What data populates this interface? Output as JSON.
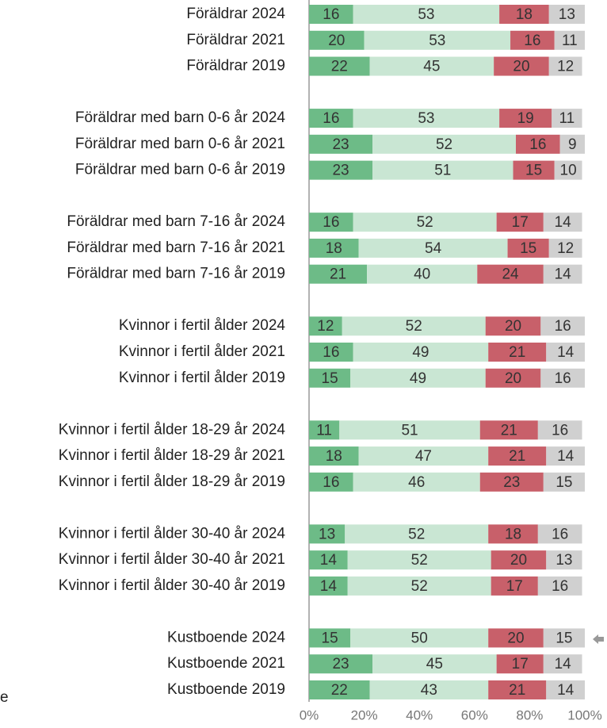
{
  "chart_data": {
    "type": "stacked-barh",
    "categories": [
      "Föräldrar 2024",
      "Föräldrar 2021",
      "Föräldrar 2019",
      null,
      "Föräldrar med barn 0-6 år 2024",
      "Föräldrar med barn 0-6 år 2021",
      "Föräldrar med barn 0-6 år 2019",
      null,
      "Föräldrar med barn 7-16 år 2024",
      "Föräldrar med barn 7-16 år 2021",
      "Föräldrar med barn 7-16 år 2019",
      null,
      "Kvinnor i fertil ålder 2024",
      "Kvinnor i fertil ålder 2021",
      "Kvinnor i fertil ålder 2019",
      null,
      "Kvinnor i fertil ålder 18-29 år 2024",
      "Kvinnor i fertil ålder 18-29 år 2021",
      "Kvinnor i fertil ålder 18-29 år 2019",
      null,
      "Kvinnor i fertil ålder 30-40 år 2024",
      "Kvinnor i fertil ålder 30-40 år 2021",
      "Kvinnor i fertil ålder 30-40 år 2019",
      null,
      "Kustboende 2024",
      "Kustboende 2021",
      "Kustboende 2019"
    ],
    "series": [
      {
        "color": "#6dbb87",
        "values": [
          16,
          20,
          22,
          null,
          16,
          23,
          23,
          null,
          16,
          18,
          21,
          null,
          12,
          16,
          15,
          null,
          11,
          18,
          16,
          null,
          13,
          14,
          14,
          null,
          15,
          23,
          22
        ]
      },
      {
        "color": "#c9e6d3",
        "values": [
          53,
          53,
          45,
          null,
          53,
          52,
          51,
          null,
          52,
          54,
          40,
          null,
          52,
          49,
          49,
          null,
          51,
          47,
          46,
          null,
          52,
          52,
          52,
          null,
          50,
          45,
          43
        ]
      },
      {
        "color": "#c8606a",
        "values": [
          18,
          16,
          20,
          null,
          19,
          16,
          15,
          null,
          17,
          15,
          24,
          null,
          20,
          21,
          20,
          null,
          21,
          21,
          23,
          null,
          18,
          20,
          17,
          null,
          20,
          17,
          21
        ]
      },
      {
        "color": "#d0d0d0",
        "values": [
          13,
          11,
          12,
          null,
          11,
          9,
          10,
          null,
          14,
          12,
          14,
          null,
          16,
          14,
          16,
          null,
          16,
          14,
          15,
          null,
          16,
          13,
          16,
          null,
          15,
          14,
          14
        ]
      }
    ],
    "xlim": [
      0,
      100
    ],
    "xticks": [
      {
        "value": 0,
        "label": "0%"
      },
      {
        "value": 20,
        "label": "20%"
      },
      {
        "value": 40,
        "label": "40%"
      },
      {
        "value": 60,
        "label": "60%"
      },
      {
        "value": 80,
        "label": "80%"
      },
      {
        "value": 100,
        "label": "100%"
      }
    ],
    "footnote": "e"
  }
}
